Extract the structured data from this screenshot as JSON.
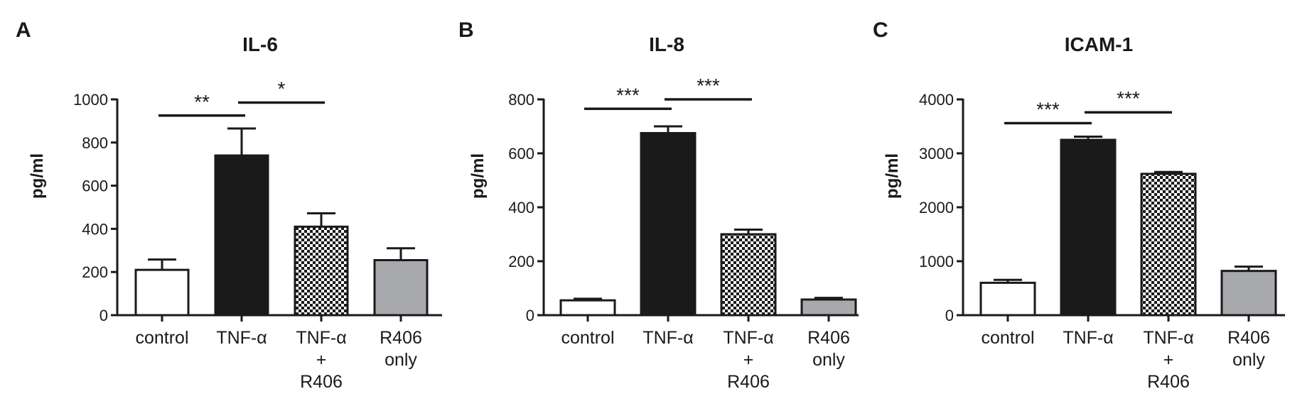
{
  "chart_data": [
    {
      "type": "bar",
      "panel": "A",
      "title": "IL-6",
      "ylabel": "pg/ml",
      "xlabel": "",
      "ylim": [
        0,
        1000
      ],
      "yticks": [
        0,
        200,
        400,
        600,
        800,
        1000
      ],
      "categories": [
        [
          "control"
        ],
        [
          "TNF-α"
        ],
        [
          "TNF-α",
          "+",
          "R406"
        ],
        [
          "R406",
          "only"
        ]
      ],
      "values": [
        210,
        740,
        410,
        255
      ],
      "errors": [
        48,
        125,
        62,
        55
      ],
      "fills": [
        "white",
        "black",
        "checker",
        "gray"
      ],
      "significance": [
        {
          "from": 0,
          "to": 1,
          "label": "**",
          "y": 925
        },
        {
          "from": 1,
          "to": 2,
          "label": "*",
          "y": 985
        }
      ],
      "grid": false
    },
    {
      "type": "bar",
      "panel": "B",
      "title": "IL-8",
      "ylabel": "pg/ml",
      "xlabel": "",
      "ylim": [
        0,
        800
      ],
      "yticks": [
        0,
        200,
        400,
        600,
        800
      ],
      "categories": [
        [
          "control"
        ],
        [
          "TNF-α"
        ],
        [
          "TNF-α",
          "+",
          "R406"
        ],
        [
          "R406",
          "only"
        ]
      ],
      "values": [
        55,
        675,
        300,
        58
      ],
      "errors": [
        6,
        25,
        17,
        6
      ],
      "fills": [
        "white",
        "black",
        "checker",
        "gray"
      ],
      "significance": [
        {
          "from": 0,
          "to": 1,
          "label": "***",
          "y": 765
        },
        {
          "from": 1,
          "to": 2,
          "label": "***",
          "y": 800
        }
      ],
      "grid": false
    },
    {
      "type": "bar",
      "panel": "C",
      "title": "ICAM-1",
      "ylabel": "pg/ml",
      "xlabel": "",
      "ylim": [
        0,
        4000
      ],
      "yticks": [
        0,
        1000,
        2000,
        3000,
        4000
      ],
      "categories": [
        [
          "control"
        ],
        [
          "TNF-α"
        ],
        [
          "TNF-α",
          "+",
          "R406"
        ],
        [
          "R406",
          "only"
        ]
      ],
      "values": [
        600,
        3250,
        2620,
        820
      ],
      "errors": [
        55,
        60,
        35,
        80
      ],
      "fills": [
        "white",
        "black",
        "checker",
        "gray"
      ],
      "significance": [
        {
          "from": 0,
          "to": 1,
          "label": "***",
          "y": 3560
        },
        {
          "from": 1,
          "to": 2,
          "label": "***",
          "y": 3760
        }
      ],
      "grid": false
    }
  ],
  "colors": {
    "ink": "#1a1a1a",
    "white_bar": "#ffffff",
    "black_bar": "#1a1a1a",
    "gray_bar": "#a7a9ad"
  }
}
